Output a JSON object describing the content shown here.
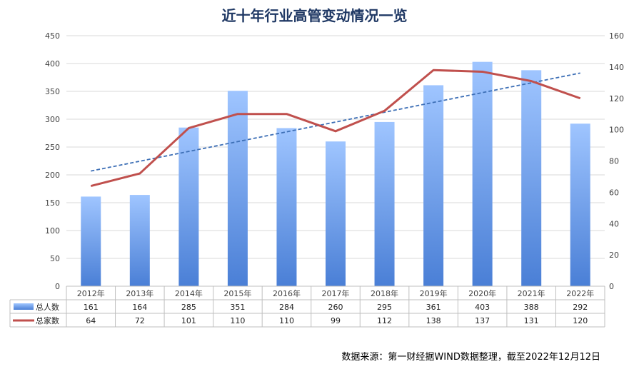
{
  "chart_data": {
    "type": "bar",
    "title": "近十年行业高管变动情况一览",
    "categories": [
      "2012年",
      "2013年",
      "2014年",
      "2015年",
      "2016年",
      "2017年",
      "2018年",
      "2019年",
      "2020年",
      "2021年",
      "2022年"
    ],
    "series": [
      {
        "name": "总人数",
        "type": "bar",
        "axis": "left",
        "values": [
          161,
          164,
          285,
          351,
          284,
          260,
          295,
          361,
          403,
          388,
          292
        ]
      },
      {
        "name": "总家数",
        "type": "line",
        "axis": "right",
        "values": [
          64,
          72,
          101,
          110,
          110,
          99,
          112,
          138,
          137,
          131,
          120
        ]
      }
    ],
    "trendline": {
      "of": "总人数",
      "style": "dashed",
      "color": "#3d6fb6"
    },
    "y_left": {
      "min": 0,
      "max": 450,
      "ticks": [
        0,
        50,
        100,
        150,
        200,
        250,
        300,
        350,
        400,
        450
      ]
    },
    "y_right": {
      "min": 0,
      "max": 160,
      "ticks": [
        0,
        20,
        40,
        60,
        80,
        100,
        120,
        140,
        160
      ]
    },
    "data_table": true,
    "colors": {
      "bar_top": "#9fc5ff",
      "bar_bottom": "#4a7fd6",
      "line": "#c0504d",
      "trend": "#3d6fb6",
      "title": "#1f3864"
    }
  },
  "source": "数据来源：第一财经据WIND数据整理，截至2022年12月12日"
}
